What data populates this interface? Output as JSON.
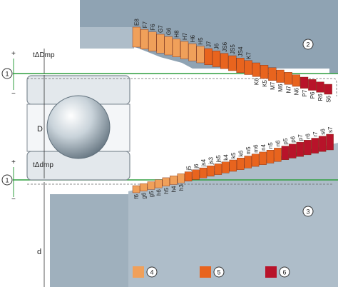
{
  "colors": {
    "housing": "#8fa3b3",
    "housing_light": "#aebdc9",
    "shaft": "#aebdc9",
    "bearing_ring": "#e3e8ec",
    "bearing_outline": "#7f8a93",
    "zero_line": "#2e9e3e",
    "tol_light": "#f0a05a",
    "tol_mid": "#e8641e",
    "tol_dark": "#b8132a"
  },
  "labels": {
    "delta_dmp": "tΔDmp",
    "delta_dmp_inner": "tΔdmp",
    "dim_D": "D",
    "dim_d": "d",
    "plus": "+",
    "minus": "−"
  },
  "markers": {
    "zero_line": "1",
    "housing": "2",
    "shaft": "3",
    "legend_light": "4",
    "legend_mid": "5",
    "legend_dark": "6"
  },
  "housing_tolerances": [
    "E8",
    "F7",
    "F6",
    "G7",
    "G6",
    "H8",
    "H7",
    "H6",
    "H5",
    "J7",
    "J6",
    "JS6",
    "JS5",
    "JS4",
    "K7",
    "K6",
    "K5",
    "M7",
    "M6",
    "N7",
    "N6",
    "P7",
    "P6",
    "R6",
    "S6"
  ],
  "shaft_tolerances": [
    "f6",
    "g6",
    "g5",
    "h6",
    "h5",
    "h4",
    "h3",
    "j5",
    "j6",
    "js4",
    "js3",
    "js5",
    "k4",
    "k5",
    "k6",
    "m5",
    "m6",
    "n4",
    "n5",
    "n6",
    "p5",
    "p6",
    "p7",
    "r6",
    "r7",
    "s6",
    "s7"
  ]
}
